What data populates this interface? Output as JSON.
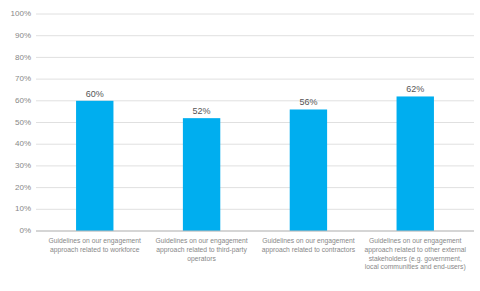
{
  "chart_data": {
    "type": "bar",
    "categories": [
      "Guidelines on our engagement\napproach related to workforce",
      "Guidelines on our engagement\napproach related to third-party\noperators",
      "Guidelines on our engagement\napproach related to contractors",
      "Guidelines on our engagement\napproach related to other external\nstakeholders (e.g. government,\nlocal communities and end-users)"
    ],
    "values": [
      60,
      52,
      56,
      62
    ],
    "value_labels": [
      "60%",
      "52%",
      "56%",
      "62%"
    ],
    "color": "#00AEEF",
    "ylim": [
      0,
      100
    ],
    "yticks": [
      {
        "value": 0,
        "label": "0%"
      },
      {
        "value": 10,
        "label": "10%"
      },
      {
        "value": 20,
        "label": "20%"
      },
      {
        "value": 30,
        "label": "30%"
      },
      {
        "value": 40,
        "label": "40%"
      },
      {
        "value": 50,
        "label": "50%"
      },
      {
        "value": 60,
        "label": "60%"
      },
      {
        "value": 70,
        "label": "70%"
      },
      {
        "value": 80,
        "label": "80%"
      },
      {
        "value": 90,
        "label": "90%"
      },
      {
        "value": 100,
        "label": "100%"
      }
    ],
    "grid": true,
    "data_labels": true
  }
}
